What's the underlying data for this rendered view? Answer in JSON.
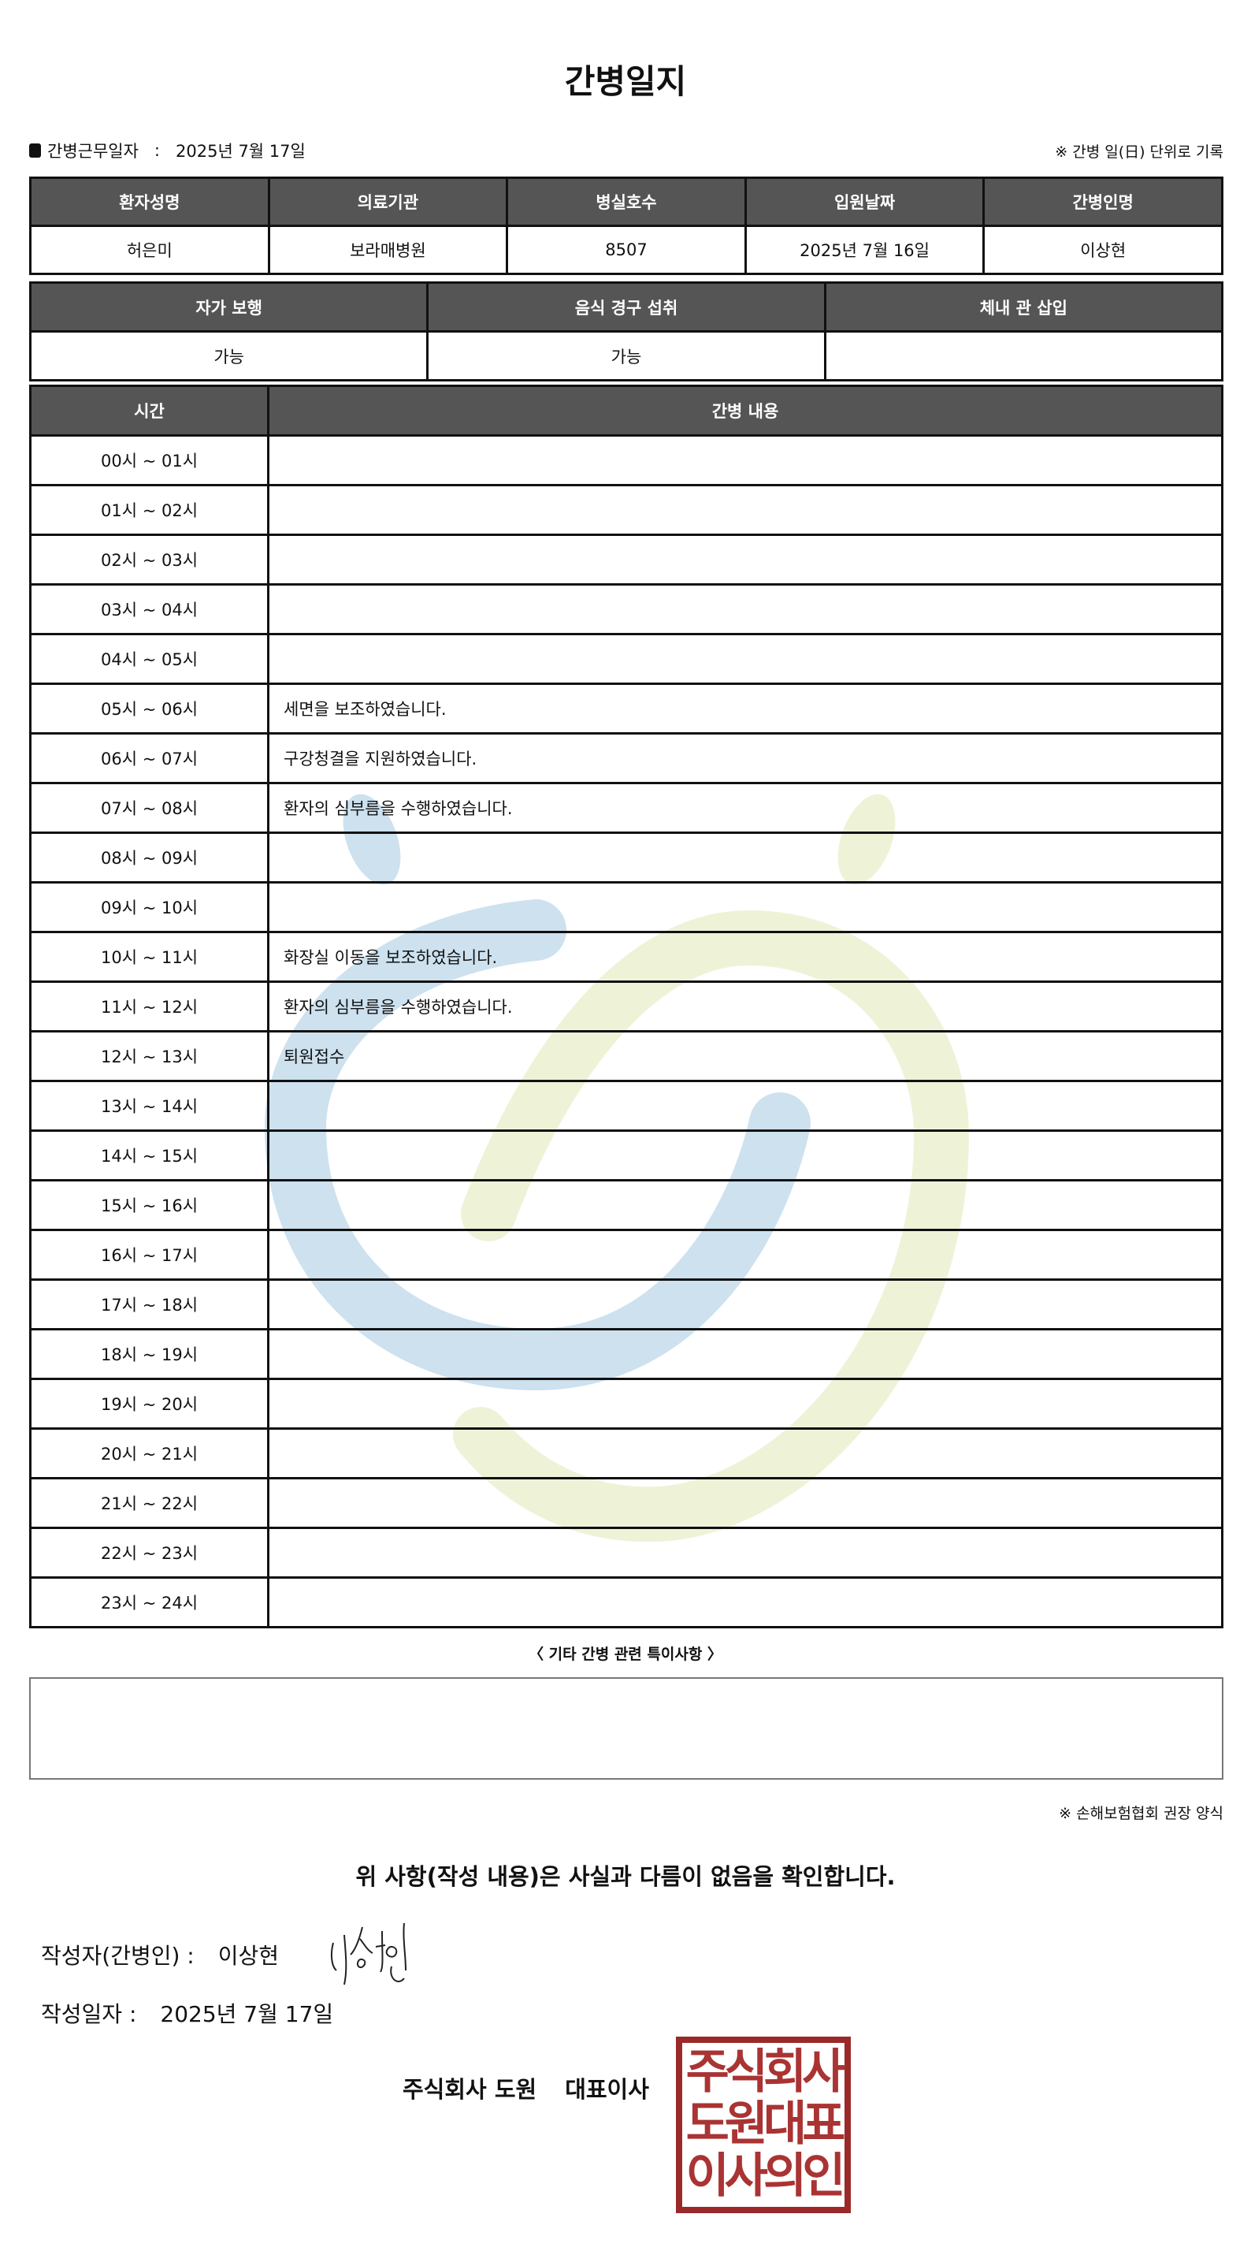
{
  "title": "간병일지",
  "work_date": {
    "label": "간병근무일자",
    "separator": ":",
    "value": "2025년 7월 17일"
  },
  "unit_note": "※ 간병 일(日) 단위로 기록",
  "patient_table": {
    "headers": [
      "환자성명",
      "의료기관",
      "병실호수",
      "입원날짜",
      "간병인명"
    ],
    "values": [
      "허은미",
      "보라매병원",
      "8507",
      "2025년 7월 16일",
      "이상현"
    ]
  },
  "status_table": {
    "headers": [
      "자가 보행",
      "음식 경구 섭취",
      "체내 관 삽입"
    ],
    "values": [
      "가능",
      "가능",
      ""
    ]
  },
  "log_table": {
    "headers": [
      "시간",
      "간병 내용"
    ],
    "rows": [
      {
        "time": "00시 ~ 01시",
        "content": ""
      },
      {
        "time": "01시 ~ 02시",
        "content": ""
      },
      {
        "time": "02시 ~ 03시",
        "content": ""
      },
      {
        "time": "03시 ~ 04시",
        "content": ""
      },
      {
        "time": "04시 ~ 05시",
        "content": ""
      },
      {
        "time": "05시 ~ 06시",
        "content": "세면을 보조하였습니다."
      },
      {
        "time": "06시 ~ 07시",
        "content": "구강청결을 지원하였습니다."
      },
      {
        "time": "07시 ~ 08시",
        "content": "환자의 심부름을 수행하였습니다."
      },
      {
        "time": "08시 ~ 09시",
        "content": ""
      },
      {
        "time": "09시 ~ 10시",
        "content": ""
      },
      {
        "time": "10시 ~ 11시",
        "content": "화장실 이동을 보조하였습니다."
      },
      {
        "time": "11시 ~ 12시",
        "content": "환자의 심부름을 수행하였습니다."
      },
      {
        "time": "12시 ~ 13시",
        "content": "퇴원접수"
      },
      {
        "time": "13시 ~ 14시",
        "content": ""
      },
      {
        "time": "14시 ~ 15시",
        "content": ""
      },
      {
        "time": "15시 ~ 16시",
        "content": ""
      },
      {
        "time": "16시 ~ 17시",
        "content": ""
      },
      {
        "time": "17시 ~ 18시",
        "content": ""
      },
      {
        "time": "18시 ~ 19시",
        "content": ""
      },
      {
        "time": "19시 ~ 20시",
        "content": ""
      },
      {
        "time": "20시 ~ 21시",
        "content": ""
      },
      {
        "time": "21시 ~ 22시",
        "content": ""
      },
      {
        "time": "22시 ~ 23시",
        "content": ""
      },
      {
        "time": "23시 ~ 24시",
        "content": ""
      }
    ]
  },
  "etc": {
    "label": "〈 기타 간병 관련 특이사항 〉",
    "content": ""
  },
  "association_note": "※ 손해보험협회 권장 양식",
  "confirmation": "위 사항(작성 내용)은 사실과 다름이 없음을 확인합니다.",
  "writer": {
    "label": "작성자(간병인) :",
    "name": "이상현",
    "signature": "이상현"
  },
  "written_date": {
    "label": "작성일자 :",
    "value": "2025년 7월 17일"
  },
  "company": {
    "name": "주식회사 도원",
    "role": "대표이사"
  },
  "stamp": {
    "lines": [
      "주식회사",
      "도원대표",
      "이사의인"
    ],
    "color": "#9a2a2a"
  },
  "colors": {
    "header_bg": "#555555",
    "watermark_blue": "#cde1ef",
    "watermark_yellow": "#eef3d8"
  }
}
